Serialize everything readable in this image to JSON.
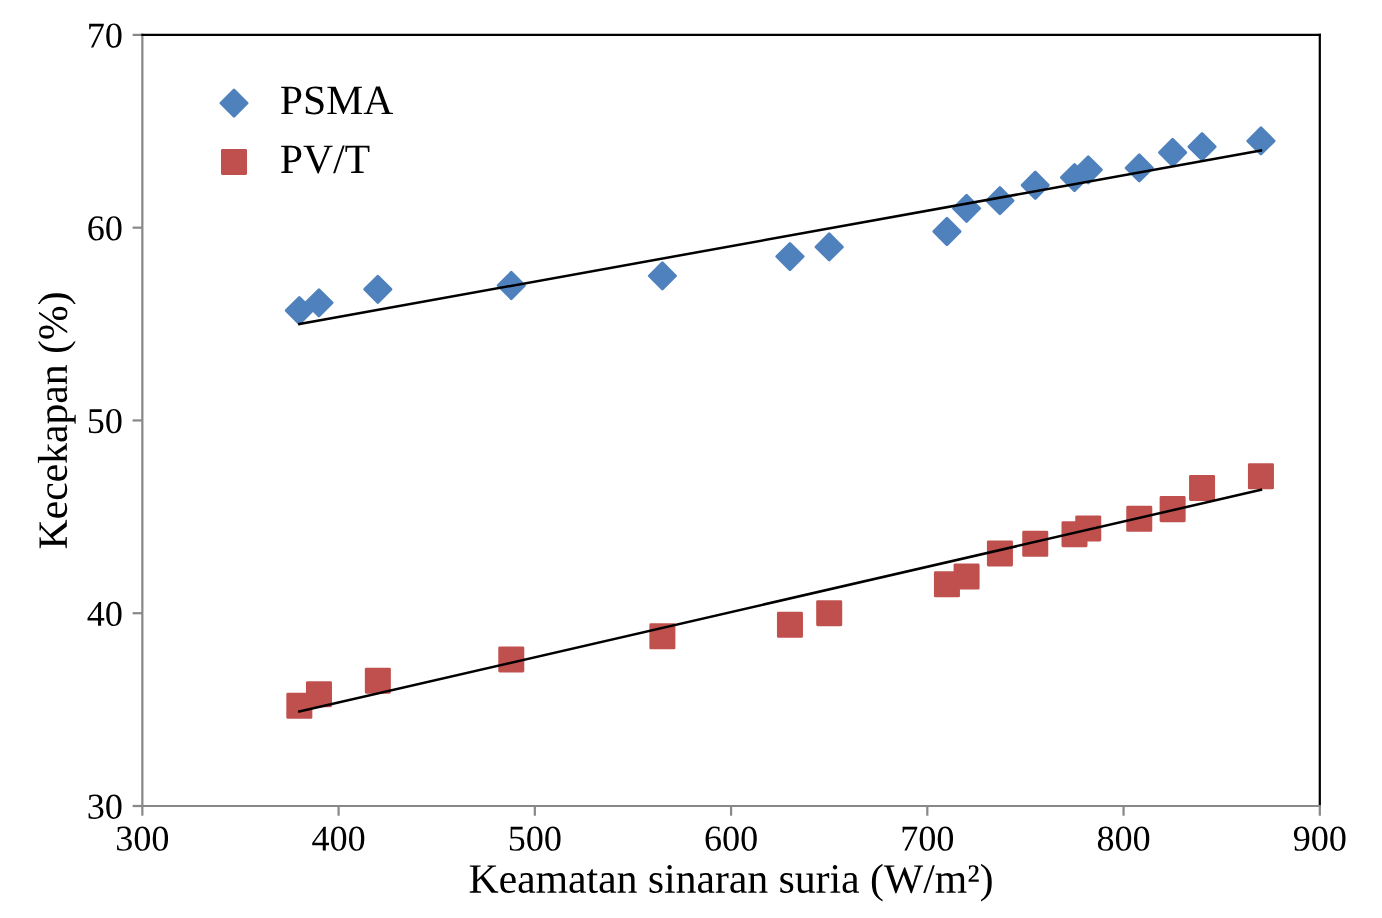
{
  "chart_data": {
    "type": "scatter",
    "xlabel": "Keamatan sinaran suria (W/m²)",
    "ylabel": "Kecekapan (%)",
    "xlim": [
      300,
      900
    ],
    "xticks": [
      300,
      400,
      500,
      600,
      700,
      800,
      900
    ],
    "ylim": [
      30,
      70
    ],
    "yticks": [
      30,
      40,
      50,
      60,
      70
    ],
    "grid": false,
    "legend": "top left",
    "series": [
      {
        "name": "PSMA",
        "color": "#4f81bd",
        "marker": "diamond",
        "x": [
          380,
          390,
          420,
          488,
          565,
          630,
          650,
          710,
          720,
          737,
          755,
          775,
          782,
          808,
          825,
          840,
          870
        ],
        "values": [
          55.7,
          56.1,
          56.8,
          57.0,
          57.5,
          58.5,
          59.0,
          59.8,
          61.0,
          61.4,
          62.2,
          62.6,
          63.0,
          63.1,
          63.9,
          64.2,
          64.5
        ]
      },
      {
        "name": "PV/T",
        "color": "#c0504d",
        "marker": "square",
        "x": [
          380,
          390,
          420,
          488,
          565,
          630,
          650,
          710,
          720,
          737,
          755,
          775,
          782,
          808,
          825,
          840,
          870
        ],
        "values": [
          35.2,
          35.8,
          36.5,
          37.6,
          38.8,
          39.4,
          40.0,
          41.5,
          41.9,
          43.1,
          43.6,
          44.1,
          44.4,
          44.9,
          45.4,
          46.5,
          47.1
        ]
      },
      {
        "type": "line",
        "color": "#000000",
        "marker": "none",
        "x": [
          380,
          870
        ],
        "values": [
          55.0,
          64.0
        ]
      },
      {
        "type": "line",
        "color": "#000000",
        "marker": "none",
        "x": [
          380,
          870
        ],
        "values": [
          34.9,
          46.4
        ]
      }
    ]
  }
}
